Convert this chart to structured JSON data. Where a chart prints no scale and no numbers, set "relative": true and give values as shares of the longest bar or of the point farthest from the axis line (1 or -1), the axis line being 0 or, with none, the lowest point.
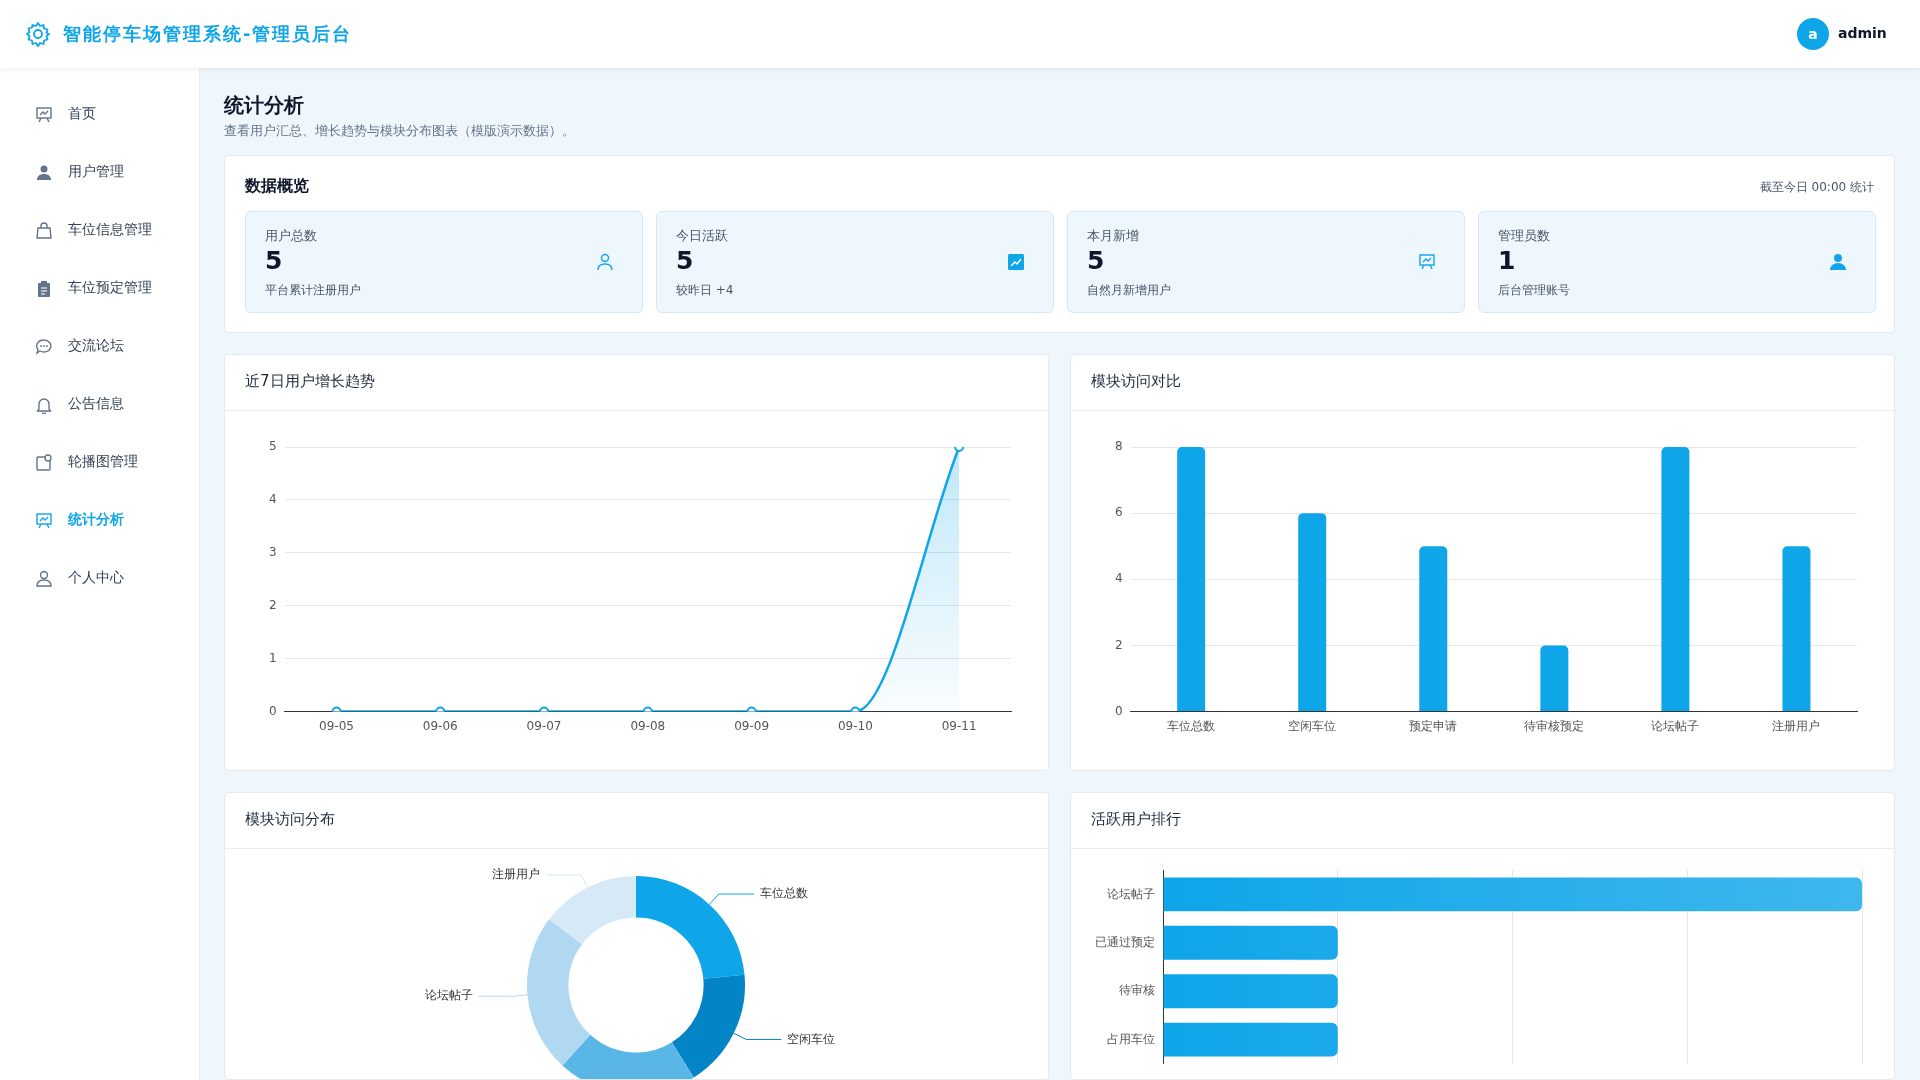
{
  "chart_data": [
    {
      "type": "other",
      "title": "智能停车场管理系统-管理员后台",
      "annotations": [
        "a",
        "admin",
        "首页",
        "用户管理",
        "车位信息管理",
        "车位预定管理",
        "交流论坛",
        "公告信息",
        "轮播图管理",
        "统计分析",
        "个人中心"
      ]
    },
    {
      "type": "other",
      "title": "统计分析",
      "subtitle": "查看用户汇总、增长趋势与模块分布图表（模版演示数据）。",
      "annotations": [
        "数据概览",
        "截至今日 00:00 统计",
        "用户总数",
        "5",
        "平台累计注册用户",
        "今日活跃",
        "5",
        "较昨日 +4",
        "本月新增",
        "5",
        "自然月新增用户",
        "管理员数",
        "1",
        "后台管理账号"
      ]
    },
    {
      "type": "area",
      "title": "近7日用户增长趋势",
      "categories": [
        "09-05",
        "09-06",
        "09-07",
        "09-08",
        "09-09",
        "09-10",
        "09-11"
      ],
      "values": [
        0,
        0,
        0,
        0,
        0,
        0,
        5
      ],
      "color": "#0ea5e9",
      "ylim": [
        0,
        5
      ],
      "yticks": [
        0,
        1,
        2,
        3,
        4,
        5
      ],
      "grid": "y",
      "marker": "circle"
    },
    {
      "type": "bar",
      "title": "模块访问对比",
      "categories": [
        "车位总数",
        "空闲车位",
        "预定申请",
        "待审核预定",
        "论坛帖子",
        "注册用户"
      ],
      "values": [
        8,
        6,
        5,
        2,
        8,
        5
      ],
      "color": "#0ea5e9",
      "ylim": [
        0,
        8
      ],
      "yticks": [
        0,
        2,
        4,
        6,
        8
      ],
      "grid": "y"
    },
    {
      "type": "donut",
      "title": "模块访问分布",
      "categories": [
        "车位总数",
        "空闲车位",
        null,
        "论坛帖子",
        "注册用户"
      ],
      "values": [
        23.5,
        17.6,
        20.7,
        23.5,
        14.7
      ],
      "colors": [
        "#0ea5e9",
        "#0284c7",
        "#5ab6e6",
        "#b0d8f0",
        "#d6e9f7"
      ]
    },
    {
      "type": "bar",
      "orientation": "horizontal",
      "relative": true,
      "title": "活跃用户排行",
      "categories": [
        "论坛帖子",
        "已通过预定",
        "待审核",
        "占用车位"
      ],
      "values": [
        1,
        0.25,
        0.25,
        0.25
      ],
      "color": "#0ea5e9",
      "grid": "x"
    }
  ]
}
